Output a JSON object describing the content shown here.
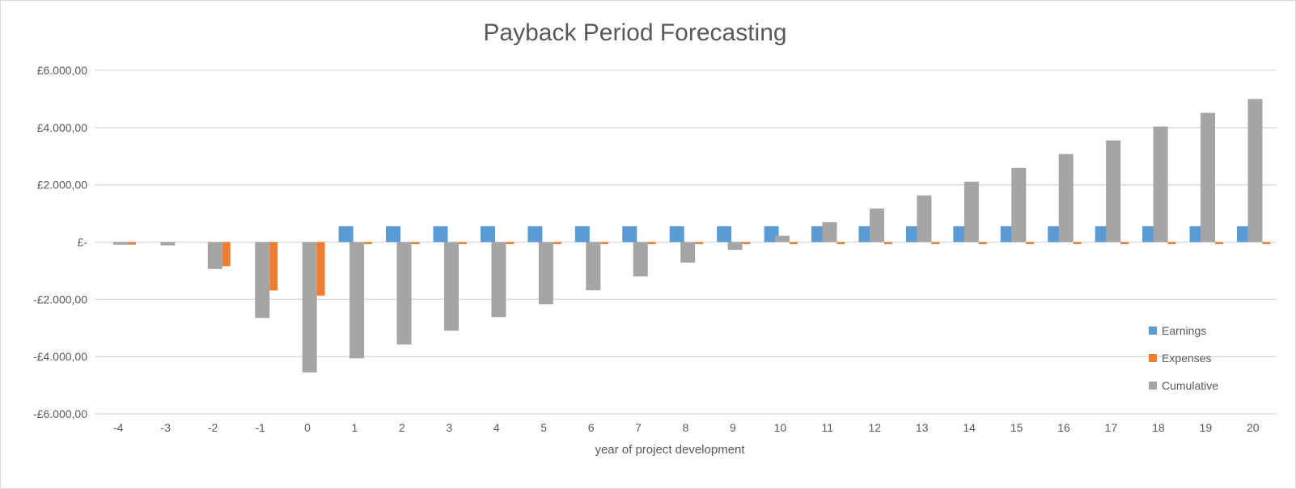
{
  "chart_data": {
    "type": "bar",
    "title": "Payback Period Forecasting",
    "xlabel": "year of project development",
    "ylabel": "",
    "ylim": [
      -6000,
      6000
    ],
    "y_ticks": [
      6000,
      4000,
      2000,
      0,
      -2000,
      -4000,
      -6000
    ],
    "y_tick_labels": [
      "£6.000,00",
      "£4.000,00",
      "£2.000,00",
      "£-",
      "-£2.000,00",
      "-£4.000,00",
      "-£6.000,00"
    ],
    "grid": true,
    "legend_position": "bottom-right",
    "categories": [
      "-4",
      "-3",
      "-2",
      "-1",
      "0",
      "1",
      "2",
      "3",
      "4",
      "5",
      "6",
      "7",
      "8",
      "9",
      "10",
      "11",
      "12",
      "13",
      "14",
      "15",
      "16",
      "17",
      "18",
      "19",
      "20"
    ],
    "series": [
      {
        "name": "Earnings",
        "color": "#5B9BD5",
        "values": [
          0,
          0,
          0,
          0,
          0,
          555,
          555,
          555,
          555,
          555,
          555,
          555,
          555,
          555,
          555,
          555,
          555,
          555,
          555,
          555,
          555,
          555,
          555,
          555,
          555
        ]
      },
      {
        "name": "Expenses",
        "color": "#ED7D31",
        "values": [
          -90,
          0,
          -840,
          -1690,
          -1870,
          -70,
          -70,
          -70,
          -70,
          -70,
          -70,
          -70,
          -70,
          -70,
          -70,
          -70,
          -70,
          -70,
          -70,
          -70,
          -70,
          -70,
          -70,
          -70,
          -70
        ]
      },
      {
        "name": "Cumulative",
        "color": "#A5A5A5",
        "values": [
          -90,
          -115,
          -940,
          -2650,
          -4550,
          -4060,
          -3580,
          -3095,
          -2620,
          -2170,
          -1685,
          -1200,
          -715,
          -270,
          220,
          695,
          1170,
          1630,
          2110,
          2590,
          3075,
          3550,
          4035,
          4515,
          5000
        ]
      }
    ]
  }
}
